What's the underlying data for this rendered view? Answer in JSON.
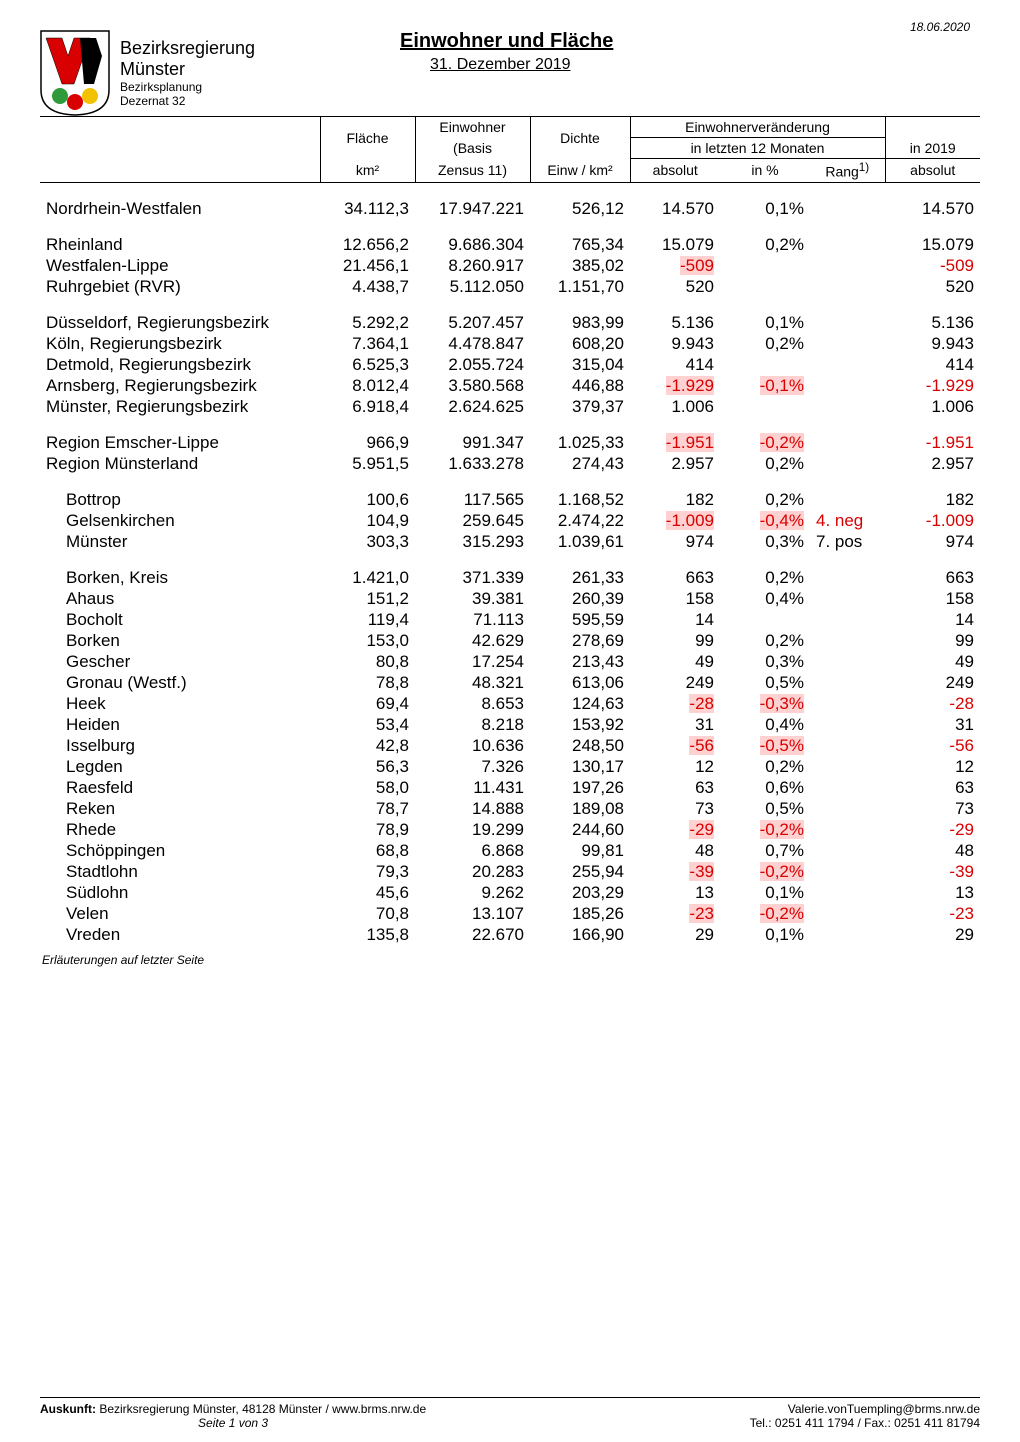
{
  "meta": {
    "date": "18.06.2020",
    "title": "Einwohner und Fläche",
    "subtitle": "31. Dezember 2019",
    "region_label": "Bezirksregierung",
    "city_label": "Münster",
    "dept_label": "Bezirksplanung",
    "dez_label": "Dezernat 32",
    "foot_note": "Erläuterungen auf letzter Seite",
    "footer_left_1": "Auskunft:",
    "footer_left_2": " Bezirksregierung Münster, 48128 Münster / www.brms.nrw.de",
    "footer_center": "Seite 1 von 3",
    "footer_right_1": "Valerie.vonTuempling@brms.nrw.de",
    "footer_right_2": "Tel.: 0251 411 1794 / Fax.: 0251 411 81794"
  },
  "logo": {
    "bg": "#ffffff",
    "border": "#000000",
    "red": "#d80000",
    "gold": "#f2c200",
    "green": "#2e9a3a"
  },
  "colhead": {
    "flache": "Fläche",
    "flache_unit": "km²",
    "einwohner": "Einwohner",
    "einwohner_sub1": "(Basis",
    "einwohner_sub2": "Zensus 11)",
    "dichte": "Dichte",
    "dichte_unit": "Einw / km²",
    "change": "Einwohnerveränderung",
    "in12": "in letzten 12 Monaten",
    "absolut": "absolut",
    "inpct": "in %",
    "rang": "Rang",
    "rang_sup": "1)",
    "in2019": "in 2019",
    "in2019_sub": "absolut"
  },
  "style": {
    "neg_color": "#d80000",
    "hl_bg": "#ffd1d1",
    "text_color": "#000000",
    "line_color": "#000000",
    "font_size_body": 17,
    "font_size_header": 14,
    "font_size_sub": 12
  },
  "rows": [
    {
      "section": true,
      "name": "Nordrhein-Westfalen",
      "flache": "34.112,3",
      "ein": "17.947.221",
      "dichte": "526,12",
      "abs": "14.570",
      "pct": "0,1%",
      "rang": "",
      "y2019": "14.570"
    },
    {
      "section": true,
      "name": "Rheinland",
      "flache": "12.656,2",
      "ein": "9.686.304",
      "dichte": "765,34",
      "abs": "15.079",
      "pct": "0,2%",
      "rang": "",
      "y2019": "15.079"
    },
    {
      "name": "Westfalen-Lippe",
      "flache": "21.456,1",
      "ein": "8.260.917",
      "dichte": "385,02",
      "abs": "-509",
      "abs_hl": true,
      "pct": "",
      "rang": "",
      "y2019": "-509",
      "y2019_neg": true
    },
    {
      "name": "Ruhrgebiet (RVR)",
      "flache": "4.438,7",
      "ein": "5.112.050",
      "dichte": "1.151,70",
      "abs": "520",
      "pct": "",
      "rang": "",
      "y2019": "520"
    },
    {
      "section": true,
      "name": "Düsseldorf, Regierungsbezirk",
      "flache": "5.292,2",
      "ein": "5.207.457",
      "dichte": "983,99",
      "abs": "5.136",
      "pct": "0,1%",
      "rang": "",
      "y2019": "5.136"
    },
    {
      "name": "Köln, Regierungsbezirk",
      "flache": "7.364,1",
      "ein": "4.478.847",
      "dichte": "608,20",
      "abs": "9.943",
      "pct": "0,2%",
      "rang": "",
      "y2019": "9.943"
    },
    {
      "name": "Detmold, Regierungsbezirk",
      "flache": "6.525,3",
      "ein": "2.055.724",
      "dichte": "315,04",
      "abs": "414",
      "pct": "",
      "rang": "",
      "y2019": "414"
    },
    {
      "name": "Arnsberg, Regierungsbezirk",
      "flache": "8.012,4",
      "ein": "3.580.568",
      "dichte": "446,88",
      "abs": "-1.929",
      "abs_hl": true,
      "pct": "-0,1%",
      "pct_hl": true,
      "rang": "",
      "y2019": "-1.929",
      "y2019_neg": true
    },
    {
      "name": "Münster, Regierungsbezirk",
      "flache": "6.918,4",
      "ein": "2.624.625",
      "dichte": "379,37",
      "abs": "1.006",
      "pct": "",
      "rang": "",
      "y2019": "1.006"
    },
    {
      "section": true,
      "name": "Region Emscher-Lippe",
      "flache": "966,9",
      "ein": "991.347",
      "dichte": "1.025,33",
      "abs": "-1.951",
      "abs_hl": true,
      "pct": "-0,2%",
      "pct_hl": true,
      "rang": "",
      "y2019": "-1.951",
      "y2019_neg": true
    },
    {
      "name": "Region Münsterland",
      "flache": "5.951,5",
      "ein": "1.633.278",
      "dichte": "274,43",
      "abs": "2.957",
      "pct": "0,2%",
      "rang": "",
      "y2019": "2.957"
    },
    {
      "section": true,
      "indent": true,
      "name": "Bottrop",
      "flache": "100,6",
      "ein": "117.565",
      "dichte": "1.168,52",
      "abs": "182",
      "pct": "0,2%",
      "rang": "",
      "y2019": "182"
    },
    {
      "indent": true,
      "name": "Gelsenkirchen",
      "flache": "104,9",
      "ein": "259.645",
      "dichte": "2.474,22",
      "abs": "-1.009",
      "abs_hl": true,
      "pct": "-0,4%",
      "pct_hl": true,
      "rang": "4. neg",
      "rang_neg": true,
      "y2019": "-1.009",
      "y2019_neg": true
    },
    {
      "indent": true,
      "name": "Münster",
      "flache": "303,3",
      "ein": "315.293",
      "dichte": "1.039,61",
      "abs": "974",
      "pct": "0,3%",
      "rang": "7. pos",
      "y2019": "974"
    },
    {
      "section": true,
      "indent": true,
      "name": "Borken, Kreis",
      "flache": "1.421,0",
      "ein": "371.339",
      "dichte": "261,33",
      "abs": "663",
      "pct": "0,2%",
      "rang": "",
      "y2019": "663"
    },
    {
      "indent": true,
      "name": "Ahaus",
      "flache": "151,2",
      "ein": "39.381",
      "dichte": "260,39",
      "abs": "158",
      "pct": "0,4%",
      "rang": "",
      "y2019": "158"
    },
    {
      "indent": true,
      "name": "Bocholt",
      "flache": "119,4",
      "ein": "71.113",
      "dichte": "595,59",
      "abs": "14",
      "pct": "",
      "rang": "",
      "y2019": "14"
    },
    {
      "indent": true,
      "name": "Borken",
      "flache": "153,0",
      "ein": "42.629",
      "dichte": "278,69",
      "abs": "99",
      "pct": "0,2%",
      "rang": "",
      "y2019": "99"
    },
    {
      "indent": true,
      "name": "Gescher",
      "flache": "80,8",
      "ein": "17.254",
      "dichte": "213,43",
      "abs": "49",
      "pct": "0,3%",
      "rang": "",
      "y2019": "49"
    },
    {
      "indent": true,
      "name": "Gronau (Westf.)",
      "flache": "78,8",
      "ein": "48.321",
      "dichte": "613,06",
      "abs": "249",
      "pct": "0,5%",
      "rang": "",
      "y2019": "249"
    },
    {
      "indent": true,
      "name": "Heek",
      "flache": "69,4",
      "ein": "8.653",
      "dichte": "124,63",
      "abs": "-28",
      "abs_hl": true,
      "pct": "-0,3%",
      "pct_hl": true,
      "rang": "",
      "y2019": "-28",
      "y2019_neg": true
    },
    {
      "indent": true,
      "name": "Heiden",
      "flache": "53,4",
      "ein": "8.218",
      "dichte": "153,92",
      "abs": "31",
      "pct": "0,4%",
      "rang": "",
      "y2019": "31"
    },
    {
      "indent": true,
      "name": "Isselburg",
      "flache": "42,8",
      "ein": "10.636",
      "dichte": "248,50",
      "abs": "-56",
      "abs_hl": true,
      "pct": "-0,5%",
      "pct_hl": true,
      "rang": "",
      "y2019": "-56",
      "y2019_neg": true
    },
    {
      "indent": true,
      "name": "Legden",
      "flache": "56,3",
      "ein": "7.326",
      "dichte": "130,17",
      "abs": "12",
      "pct": "0,2%",
      "rang": "",
      "y2019": "12"
    },
    {
      "indent": true,
      "name": "Raesfeld",
      "flache": "58,0",
      "ein": "11.431",
      "dichte": "197,26",
      "abs": "63",
      "pct": "0,6%",
      "rang": "",
      "y2019": "63"
    },
    {
      "indent": true,
      "name": "Reken",
      "flache": "78,7",
      "ein": "14.888",
      "dichte": "189,08",
      "abs": "73",
      "pct": "0,5%",
      "rang": "",
      "y2019": "73"
    },
    {
      "indent": true,
      "name": "Rhede",
      "flache": "78,9",
      "ein": "19.299",
      "dichte": "244,60",
      "abs": "-29",
      "abs_hl": true,
      "pct": "-0,2%",
      "pct_hl": true,
      "rang": "",
      "y2019": "-29",
      "y2019_neg": true
    },
    {
      "indent": true,
      "name": "Schöppingen",
      "flache": "68,8",
      "ein": "6.868",
      "dichte": "99,81",
      "abs": "48",
      "pct": "0,7%",
      "rang": "",
      "y2019": "48"
    },
    {
      "indent": true,
      "name": "Stadtlohn",
      "flache": "79,3",
      "ein": "20.283",
      "dichte": "255,94",
      "abs": "-39",
      "abs_hl": true,
      "pct": "-0,2%",
      "pct_hl": true,
      "rang": "",
      "y2019": "-39",
      "y2019_neg": true
    },
    {
      "indent": true,
      "name": "Südlohn",
      "flache": "45,6",
      "ein": "9.262",
      "dichte": "203,29",
      "abs": "13",
      "pct": "0,1%",
      "rang": "",
      "y2019": "13"
    },
    {
      "indent": true,
      "name": "Velen",
      "flache": "70,8",
      "ein": "13.107",
      "dichte": "185,26",
      "abs": "-23",
      "abs_hl": true,
      "pct": "-0,2%",
      "pct_hl": true,
      "rang": "",
      "y2019": "-23",
      "y2019_neg": true
    },
    {
      "indent": true,
      "name": "Vreden",
      "flache": "135,8",
      "ein": "22.670",
      "dichte": "166,90",
      "abs": "29",
      "pct": "0,1%",
      "rang": "",
      "y2019": "29"
    }
  ]
}
